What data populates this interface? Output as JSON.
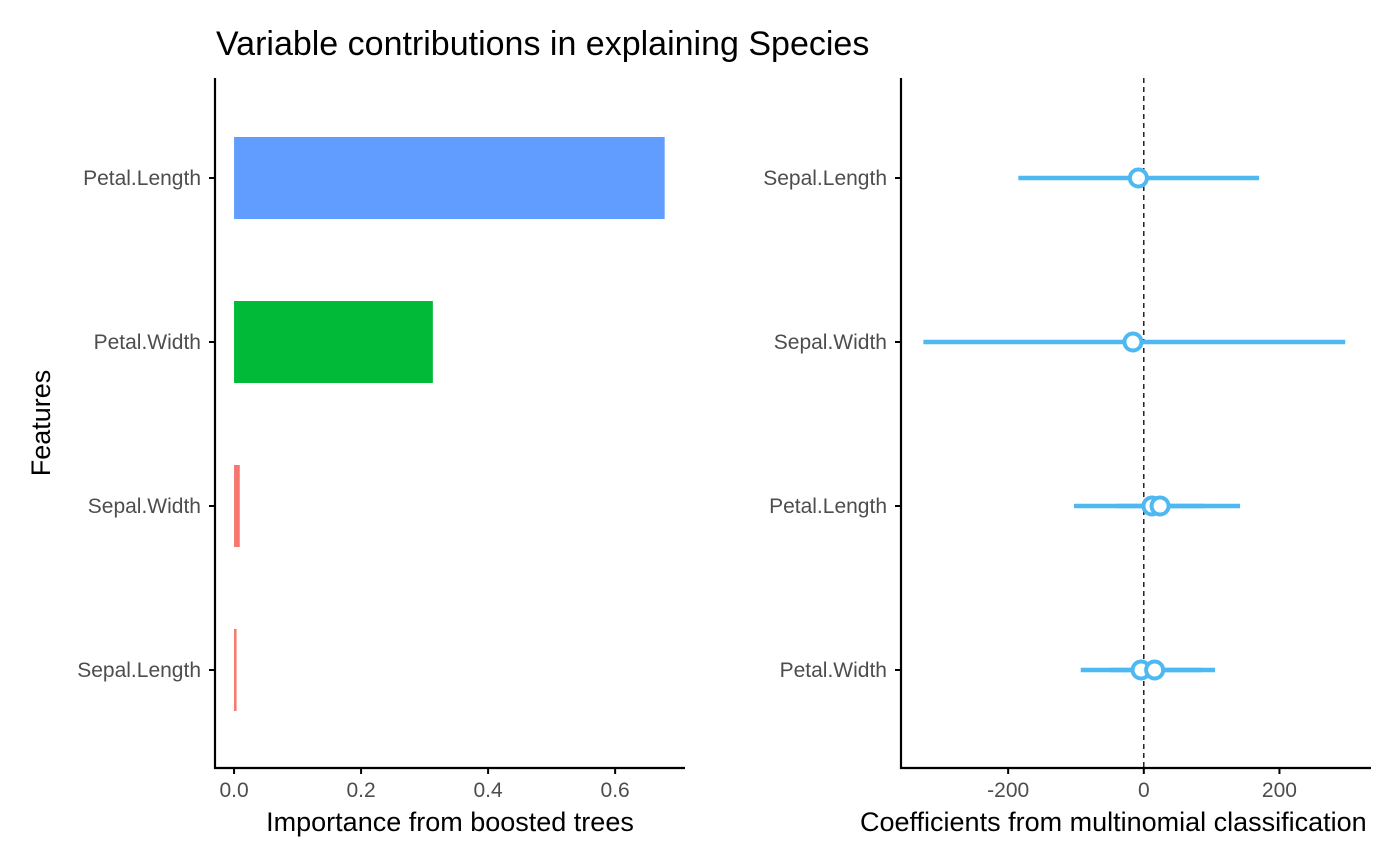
{
  "title": "Variable contributions in explaining Species",
  "chart_data": [
    {
      "type": "bar",
      "orientation": "horizontal",
      "xlabel": "Importance from boosted trees",
      "ylabel": "Features",
      "categories": [
        "Petal.Length",
        "Petal.Width",
        "Sepal.Width",
        "Sepal.Length"
      ],
      "values": [
        0.678,
        0.313,
        0.009,
        0.003
      ],
      "colors": [
        "#619cff",
        "#00ba38",
        "#f8766d",
        "#f8766d"
      ],
      "xlim": [
        -0.03,
        0.71
      ],
      "xticks": [
        0.0,
        0.2,
        0.4,
        0.6
      ],
      "xtick_labels": [
        "0.0",
        "0.2",
        "0.4",
        "0.6"
      ],
      "grid": false
    },
    {
      "type": "scatter",
      "subtype": "errorbar",
      "xlabel": "Coefficients from multinomial classification",
      "categories": [
        "Sepal.Length",
        "Sepal.Width",
        "Petal.Length",
        "Petal.Width"
      ],
      "points": [
        {
          "category": "Sepal.Length",
          "estimate": -8,
          "low": -185,
          "high": 170
        },
        {
          "category": "Sepal.Width",
          "estimate": -16,
          "low": -325,
          "high": 297
        },
        {
          "category": "Petal.Length",
          "estimate": 12,
          "low": -103,
          "high": 142
        },
        {
          "category": "Petal.Length",
          "estimate": 24,
          "low": -40,
          "high": 90
        },
        {
          "category": "Petal.Width",
          "estimate": -4,
          "low": -93,
          "high": 105
        },
        {
          "category": "Petal.Width",
          "estimate": 16,
          "low": -50,
          "high": 85
        }
      ],
      "reference_line": {
        "x": 0,
        "style": "dashed"
      },
      "color": "#4db8f2",
      "xlim": [
        -358,
        335
      ],
      "xticks": [
        -200,
        0,
        200
      ],
      "xtick_labels": [
        "-200",
        "0",
        "200"
      ],
      "grid": false
    }
  ]
}
